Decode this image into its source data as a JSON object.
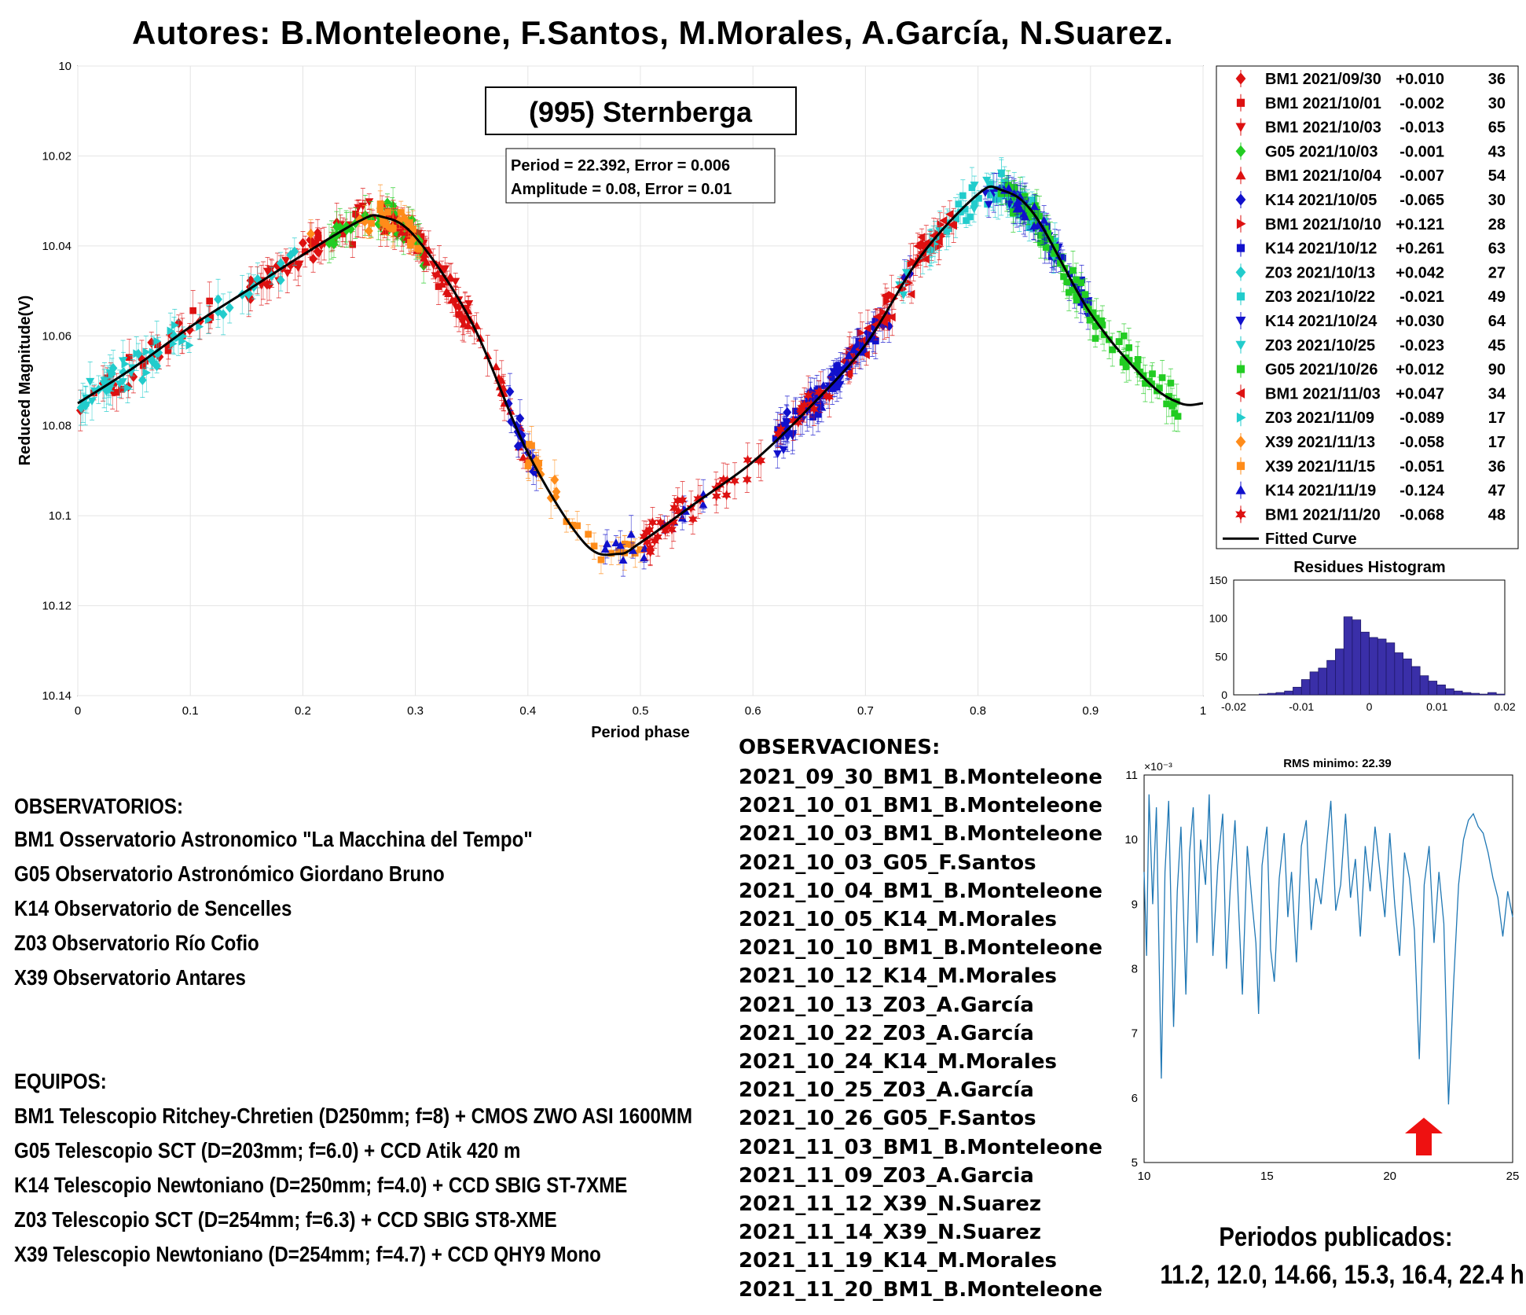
{
  "header": {
    "authors": "Autores: B.Monteleone, F.Santos, M.Morales, A.García, N.Suarez."
  },
  "colors": {
    "fit_curve": "#000000",
    "histogram_bar": "#3a2fa8",
    "periodogram_line": "#1f77b4",
    "arrow": "#ee1111"
  },
  "chart_data": [
    {
      "type": "scatter",
      "title": "(995) Sternberga",
      "fit_info": [
        "Period =  22.392, Error = 0.006",
        "Amplitude = 0.08, Error = 0.01"
      ],
      "xlabel": "Period phase",
      "ylabel": "Reduced Magnitude(V)",
      "xlim": [
        0,
        1
      ],
      "ylim": [
        10.14,
        10.0
      ],
      "y_inverted": true,
      "grid": true,
      "x_ticks": [
        "0",
        "0.1",
        "0.2",
        "0.3",
        "0.4",
        "0.5",
        "0.6",
        "0.7",
        "0.8",
        "0.9",
        "1"
      ],
      "y_ticks": [
        "10",
        "10.02",
        "10.04",
        "10.06",
        "10.08",
        "10.1",
        "10.12",
        "10.14"
      ],
      "legend_position": "outside-right",
      "legend": [
        {
          "label": "BM1 2021/09/30",
          "offset": "+0.010",
          "n": "36",
          "color": "#dd1111",
          "marker": "diamond"
        },
        {
          "label": "BM1 2021/10/01",
          "offset": "-0.002",
          "n": "30",
          "color": "#dd1111",
          "marker": "square"
        },
        {
          "label": "BM1 2021/10/03",
          "offset": "-0.013",
          "n": "65",
          "color": "#dd1111",
          "marker": "triangle-down"
        },
        {
          "label": "G05 2021/10/03",
          "offset": "-0.001",
          "n": "43",
          "color": "#22cc22",
          "marker": "diamond"
        },
        {
          "label": "BM1 2021/10/04",
          "offset": "-0.007",
          "n": "54",
          "color": "#dd1111",
          "marker": "triangle-up"
        },
        {
          "label": "K14 2021/10/05",
          "offset": "-0.065",
          "n": "30",
          "color": "#1111cc",
          "marker": "diamond"
        },
        {
          "label": "BM1 2021/10/10",
          "offset": "+0.121",
          "n": "28",
          "color": "#dd1111",
          "marker": "triangle-right"
        },
        {
          "label": "K14 2021/10/12",
          "offset": "+0.261",
          "n": "63",
          "color": "#1111cc",
          "marker": "square"
        },
        {
          "label": "Z03 2021/10/13",
          "offset": "+0.042",
          "n": "27",
          "color": "#22cccc",
          "marker": "diamond"
        },
        {
          "label": "Z03 2021/10/22",
          "offset": "-0.021",
          "n": "49",
          "color": "#22cccc",
          "marker": "square"
        },
        {
          "label": "K14 2021/10/24",
          "offset": "+0.030",
          "n": "64",
          "color": "#1111cc",
          "marker": "triangle-down"
        },
        {
          "label": "Z03 2021/10/25",
          "offset": "-0.023",
          "n": "45",
          "color": "#22cccc",
          "marker": "triangle-down"
        },
        {
          "label": "G05 2021/10/26",
          "offset": "+0.012",
          "n": "90",
          "color": "#22cc22",
          "marker": "square"
        },
        {
          "label": "BM1 2021/11/03",
          "offset": "+0.047",
          "n": "34",
          "color": "#dd1111",
          "marker": "triangle-left"
        },
        {
          "label": "Z03 2021/11/09",
          "offset": "-0.089",
          "n": "17",
          "color": "#22cccc",
          "marker": "triangle-right"
        },
        {
          "label": "X39 2021/11/13",
          "offset": "-0.058",
          "n": "17",
          "color": "#ff8c1a",
          "marker": "diamond"
        },
        {
          "label": "X39 2021/11/15",
          "offset": "-0.051",
          "n": "36",
          "color": "#ff8c1a",
          "marker": "square"
        },
        {
          "label": "K14 2021/11/19",
          "offset": "-0.124",
          "n": "47",
          "color": "#1111cc",
          "marker": "triangle-up"
        },
        {
          "label": "BM1 2021/11/20",
          "offset": "-0.068",
          "n": "48",
          "color": "#dd1111",
          "marker": "hexagram"
        },
        {
          "label": "Fitted Curve",
          "color": "#000000",
          "marker": "line"
        }
      ],
      "fit_curve": {
        "x": [
          0,
          0.05,
          0.1,
          0.15,
          0.2,
          0.25,
          0.27,
          0.3,
          0.35,
          0.4,
          0.45,
          0.48,
          0.5,
          0.55,
          0.6,
          0.65,
          0.7,
          0.75,
          0.8,
          0.82,
          0.85,
          0.9,
          0.95,
          0.98,
          1.0
        ],
        "y": [
          10.075,
          10.067,
          10.058,
          10.05,
          10.042,
          10.0345,
          10.0335,
          10.038,
          10.057,
          10.086,
          10.106,
          10.1085,
          10.106,
          10.097,
          10.088,
          10.076,
          10.062,
          10.042,
          10.0285,
          10.0275,
          10.033,
          10.055,
          10.07,
          10.075,
          10.075
        ]
      }
    },
    {
      "type": "bar",
      "title": "Residues Histogram",
      "xlim": [
        -0.02,
        0.02
      ],
      "ylim": [
        0,
        150
      ],
      "x_ticks": [
        "-0.02",
        "-0.01",
        "0",
        "0.01",
        "0.02"
      ],
      "y_ticks": [
        "0",
        "50",
        "100",
        "150"
      ],
      "bin_width": 0.00125,
      "bin_centers": [
        -0.015625,
        -0.014375,
        -0.013125,
        -0.011875,
        -0.010625,
        -0.009375,
        -0.008125,
        -0.006875,
        -0.005625,
        -0.004375,
        -0.003125,
        -0.001875,
        -0.000625,
        0.000625,
        0.001875,
        0.003125,
        0.004375,
        0.005625,
        0.006875,
        0.008125,
        0.009375,
        0.010625,
        0.011875,
        0.013125,
        0.014375,
        0.015625,
        0.016875,
        0.018125,
        0.019375
      ],
      "values": [
        1,
        2,
        3,
        5,
        10,
        20,
        30,
        35,
        45,
        60,
        102,
        98,
        82,
        75,
        73,
        68,
        55,
        47,
        37,
        25,
        18,
        13,
        8,
        5,
        3,
        2,
        1,
        3,
        1
      ]
    },
    {
      "type": "line",
      "title": "RMS minimo: 22.39",
      "y_multiplier_label": "×10⁻³",
      "xlim": [
        10,
        25
      ],
      "ylim": [
        5,
        11
      ],
      "x_ticks": [
        "10",
        "15",
        "20",
        "25"
      ],
      "y_ticks": [
        "5",
        "6",
        "7",
        "8",
        "9",
        "10",
        "11"
      ],
      "x": [
        10.0,
        10.1,
        10.2,
        10.35,
        10.5,
        10.7,
        10.85,
        11.0,
        11.2,
        11.35,
        11.5,
        11.7,
        11.85,
        12.0,
        12.15,
        12.3,
        12.5,
        12.65,
        12.8,
        13.0,
        13.2,
        13.35,
        13.5,
        13.7,
        13.85,
        14.0,
        14.2,
        14.4,
        14.55,
        14.66,
        14.8,
        15.0,
        15.15,
        15.3,
        15.5,
        15.7,
        15.85,
        16.0,
        16.2,
        16.4,
        16.6,
        16.8,
        17.0,
        17.2,
        17.4,
        17.6,
        17.8,
        18.0,
        18.2,
        18.4,
        18.6,
        18.8,
        19.0,
        19.2,
        19.4,
        19.6,
        19.8,
        20.0,
        20.2,
        20.4,
        20.6,
        20.8,
        21.0,
        21.2,
        21.4,
        21.6,
        21.8,
        22.0,
        22.2,
        22.39,
        22.6,
        22.8,
        23.0,
        23.2,
        23.4,
        23.6,
        23.8,
        24.0,
        24.2,
        24.4,
        24.6,
        24.8,
        25.0
      ],
      "y": [
        9.5,
        8.2,
        10.7,
        9.0,
        10.5,
        6.3,
        9.5,
        10.6,
        7.1,
        9.2,
        10.2,
        7.6,
        9.8,
        10.5,
        8.4,
        10.0,
        9.3,
        10.7,
        8.2,
        9.6,
        10.4,
        8.0,
        9.2,
        10.3,
        8.9,
        7.6,
        9.9,
        9.0,
        8.4,
        7.3,
        9.6,
        10.2,
        8.3,
        7.8,
        9.4,
        10.1,
        8.8,
        9.5,
        8.1,
        9.9,
        10.3,
        8.6,
        9.4,
        9.0,
        9.8,
        10.6,
        8.9,
        9.3,
        10.4,
        9.1,
        9.7,
        8.5,
        9.9,
        9.2,
        10.2,
        9.5,
        8.8,
        10.1,
        9.0,
        8.2,
        9.8,
        9.4,
        8.6,
        6.6,
        9.3,
        9.9,
        8.4,
        9.5,
        8.7,
        5.9,
        7.8,
        9.3,
        10.0,
        10.3,
        10.4,
        10.2,
        10.1,
        9.8,
        9.4,
        9.1,
        8.5,
        9.2,
        8.8
      ]
    }
  ],
  "observatories": {
    "heading": "OBSERVATORIOS:",
    "items": [
      "BM1 Osservatorio Astronomico \"La Macchina del Tempo\"",
      "G05 Observatorio Astronómico Giordano Bruno",
      "K14 Observatorio de Sencelles",
      "Z03 Observatorio Río Cofio",
      "X39 Observatorio Antares"
    ]
  },
  "equipment": {
    "heading": "EQUIPOS:",
    "items": [
      "BM1 Telescopio Ritchey-Chretien (D250mm; f=8) + CMOS ZWO ASI 1600MM",
      "G05 Telescopio SCT (D=203mm; f=6.0) + CCD Atik 420 m",
      "K14 Telescopio Newtoniano (D=250mm; f=4.0) + CCD SBIG ST-7XME",
      "Z03 Telescopio SCT (D=254mm; f=6.3) + CCD SBIG ST8-XME",
      "X39 Telescopio Newtoniano (D=254mm; f=4.7) + CCD QHY9 Mono"
    ]
  },
  "observations": {
    "heading": "OBSERVACIONES:",
    "items": [
      "2021_09_30_BM1_B.Monteleone",
      "2021_10_01_BM1_B.Monteleone",
      "2021_10_03_BM1_B.Monteleone",
      "2021_10_03_G05_F.Santos",
      "2021_10_04_BM1_B.Monteleone",
      "2021_10_05_K14_M.Morales",
      "2021_10_10_BM1_B.Monteleone",
      "2021_10_12_K14_M.Morales",
      "2021_10_13_Z03_A.García",
      "2021_10_22_Z03_A.García",
      "2021_10_24_K14_M.Morales",
      "2021_10_25_Z03_A.García",
      "2021_10_26_G05_F.Santos",
      "2021_11_03_BM1_B.Monteleone",
      "2021_11_09_Z03_A.Garcia",
      "2021_11_12_X39_N.Suarez",
      "2021_11_14_X39_N.Suarez",
      "2021_11_19_K14_M.Morales",
      "2021_11_20_BM1_B.Monteleone"
    ]
  },
  "published_periods": {
    "title": "Periodos publicados:",
    "values": "11.2, 12.0, 14.66, 15.3, 16.4, 22.4 h"
  }
}
